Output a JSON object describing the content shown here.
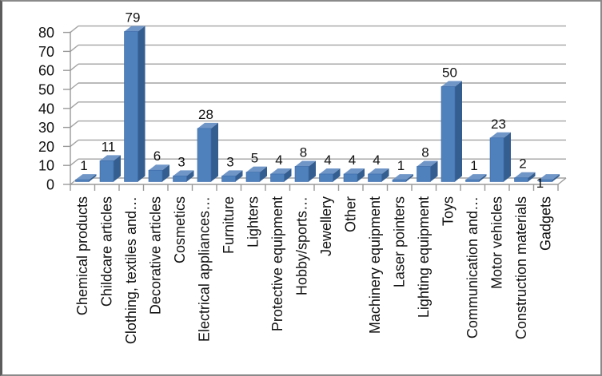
{
  "window": {
    "background": "#ffffff",
    "border_color": "#8a8a8a",
    "border_left_color": "#5c5c5c"
  },
  "chart_data": {
    "type": "bar",
    "style": "3d-column",
    "title": "",
    "xlabel": "",
    "ylabel": "",
    "categories": [
      "Chemical products",
      "Childcare articles",
      "Clothing, textiles and…",
      "Decorative articles",
      "Cosmetics",
      "Electrical appliances…",
      "Furniture",
      "Lighters",
      "Protective equipment",
      "Hobby/sports…",
      "Jewellery",
      "Other",
      "Machinery equipment",
      "Laser pointers",
      "Lighting equipment",
      "Toys",
      "Communication and…",
      "Motor vehicles",
      "Construction materials",
      "Gadgets"
    ],
    "values": [
      1,
      11,
      79,
      6,
      3,
      28,
      3,
      5,
      4,
      8,
      4,
      4,
      4,
      1,
      8,
      50,
      1,
      23,
      2,
      1
    ],
    "ylim": [
      0,
      80
    ],
    "yticks": [
      0,
      10,
      20,
      30,
      40,
      50,
      60,
      70,
      80
    ],
    "grid": true,
    "data_labels": true,
    "legend": "none",
    "colors": {
      "bar_front": "#4f81bd",
      "bar_top": "#7096c7",
      "bar_side": "#355e90",
      "bar_outline": "#3c6ba8",
      "gridline": "#a3a3a3",
      "axis": "#9a9a9a",
      "text": "#111111"
    }
  }
}
